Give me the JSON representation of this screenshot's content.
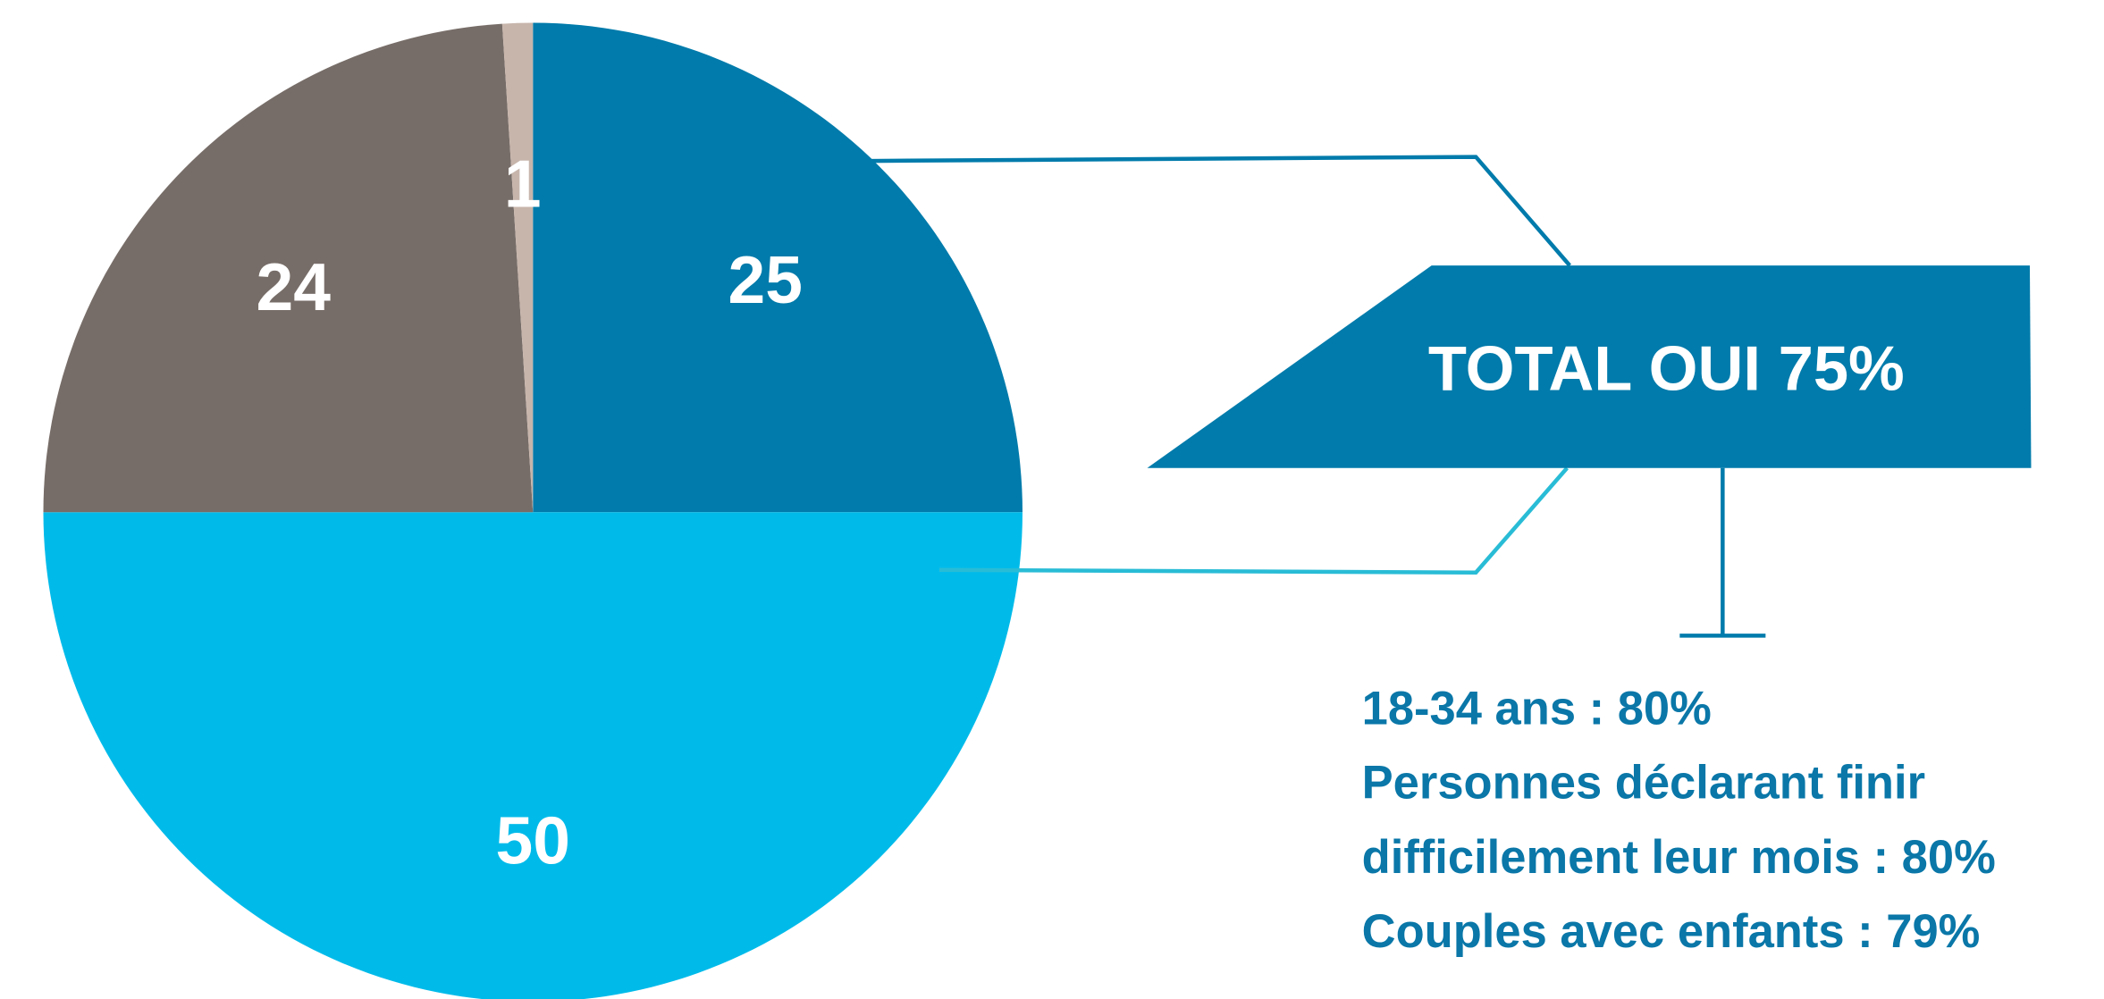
{
  "chart_data": {
    "type": "pie",
    "values": [
      25,
      50,
      24,
      1
    ],
    "colors": [
      "#007bab",
      "#00bbea",
      "#776d68",
      "#c7b5ab"
    ],
    "annotations": {
      "total": "TOTAL OUI 75%",
      "details": [
        "18-34 ans : 80%",
        "Personnes déclarant finir",
        "difficilement leur mois : 80%",
        "Couples avec enfants : 79%"
      ]
    }
  }
}
